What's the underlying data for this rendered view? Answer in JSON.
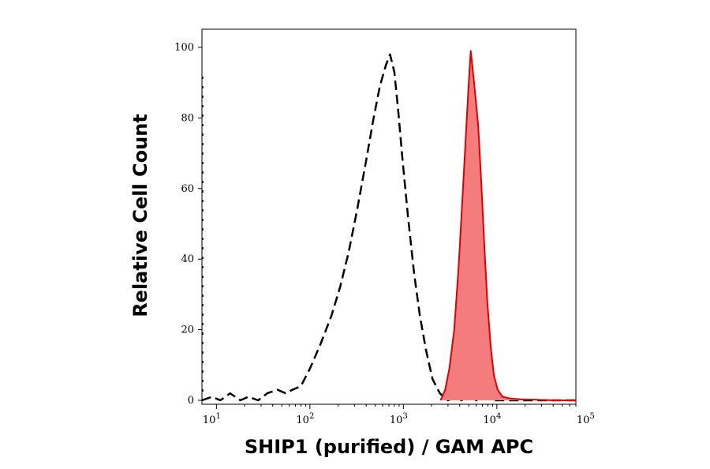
{
  "chart_data": {
    "type": "area",
    "xlabel": "SHIP1 (purified) / GAM APC",
    "ylabel": "Relative Cell Count",
    "xscale": "log",
    "xlim": [
      7,
      70000
    ],
    "ylim": [
      0,
      105
    ],
    "y_ticks": [
      0,
      20,
      40,
      60,
      80,
      100
    ],
    "x_ticks": [
      {
        "value": 10,
        "base": "10",
        "exp": "1"
      },
      {
        "value": 100,
        "base": "10",
        "exp": "2"
      },
      {
        "value": 1000,
        "base": "10",
        "exp": "3"
      },
      {
        "value": 10000,
        "base": "10",
        "exp": "4"
      },
      {
        "value": 100000,
        "base": "10",
        "exp": "5"
      }
    ],
    "grid": false,
    "legend": "none",
    "series": [
      {
        "style": "dashed",
        "color": "#000000",
        "fill": "none",
        "points": [
          [
            7,
            0
          ],
          [
            9,
            1
          ],
          [
            11,
            0
          ],
          [
            14,
            2
          ],
          [
            18,
            0
          ],
          [
            22,
            1
          ],
          [
            28,
            0
          ],
          [
            35,
            2
          ],
          [
            45,
            3
          ],
          [
            55,
            2
          ],
          [
            65,
            3
          ],
          [
            80,
            4
          ],
          [
            100,
            9
          ],
          [
            130,
            16
          ],
          [
            170,
            24
          ],
          [
            210,
            32
          ],
          [
            260,
            42
          ],
          [
            320,
            54
          ],
          [
            400,
            68
          ],
          [
            480,
            80
          ],
          [
            560,
            89
          ],
          [
            650,
            95
          ],
          [
            720,
            98
          ],
          [
            800,
            93
          ],
          [
            880,
            82
          ],
          [
            980,
            68
          ],
          [
            1120,
            52
          ],
          [
            1300,
            36
          ],
          [
            1500,
            24
          ],
          [
            1750,
            14
          ],
          [
            2050,
            6
          ],
          [
            2450,
            2
          ],
          [
            3000,
            0
          ],
          [
            3600,
            1
          ],
          [
            4200,
            0
          ],
          [
            5000,
            2
          ],
          [
            6000,
            0
          ],
          [
            7500,
            1
          ],
          [
            9000,
            0
          ],
          [
            12000,
            0
          ],
          [
            70000,
            0
          ]
        ]
      },
      {
        "style": "solid",
        "color": "#dd0000",
        "fill": "#f47c7c",
        "points": [
          [
            2500,
            0
          ],
          [
            2800,
            3
          ],
          [
            3100,
            9
          ],
          [
            3500,
            20
          ],
          [
            3900,
            38
          ],
          [
            4300,
            58
          ],
          [
            4700,
            77
          ],
          [
            5000,
            90
          ],
          [
            5250,
            99
          ],
          [
            5500,
            94
          ],
          [
            5900,
            86
          ],
          [
            6300,
            78
          ],
          [
            6800,
            62
          ],
          [
            7300,
            45
          ],
          [
            7900,
            28
          ],
          [
            8600,
            15
          ],
          [
            9300,
            7
          ],
          [
            10200,
            3
          ],
          [
            11500,
            1
          ],
          [
            14000,
            0.5
          ],
          [
            18000,
            0.3
          ],
          [
            25000,
            0.2
          ],
          [
            40000,
            0
          ],
          [
            70000,
            0
          ]
        ]
      }
    ]
  }
}
